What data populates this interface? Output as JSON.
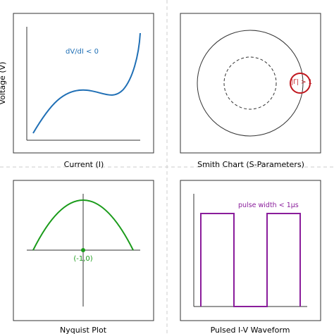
{
  "panels": {
    "iv_curve": {
      "ylabel": "Voltage (V)",
      "xlabel": "Current (I)",
      "annotation": "dV/dI < 0"
    },
    "smith": {
      "xlabel": "Smith Chart (S-Parameters)",
      "annotation": "|Γ| > 1"
    },
    "nyquist": {
      "xlabel": "Nyquist Plot",
      "point_label": "(-1,0)"
    },
    "pulsed": {
      "xlabel": "Pulsed I-V Waveform",
      "annotation": "pulse width < 1μs"
    }
  },
  "colors": {
    "blue": "#1f6fb5",
    "red": "#c0171e",
    "green": "#1a9b1a",
    "purple": "#8a1d9b",
    "frame": "#333333",
    "divider": "#cccccc"
  }
}
